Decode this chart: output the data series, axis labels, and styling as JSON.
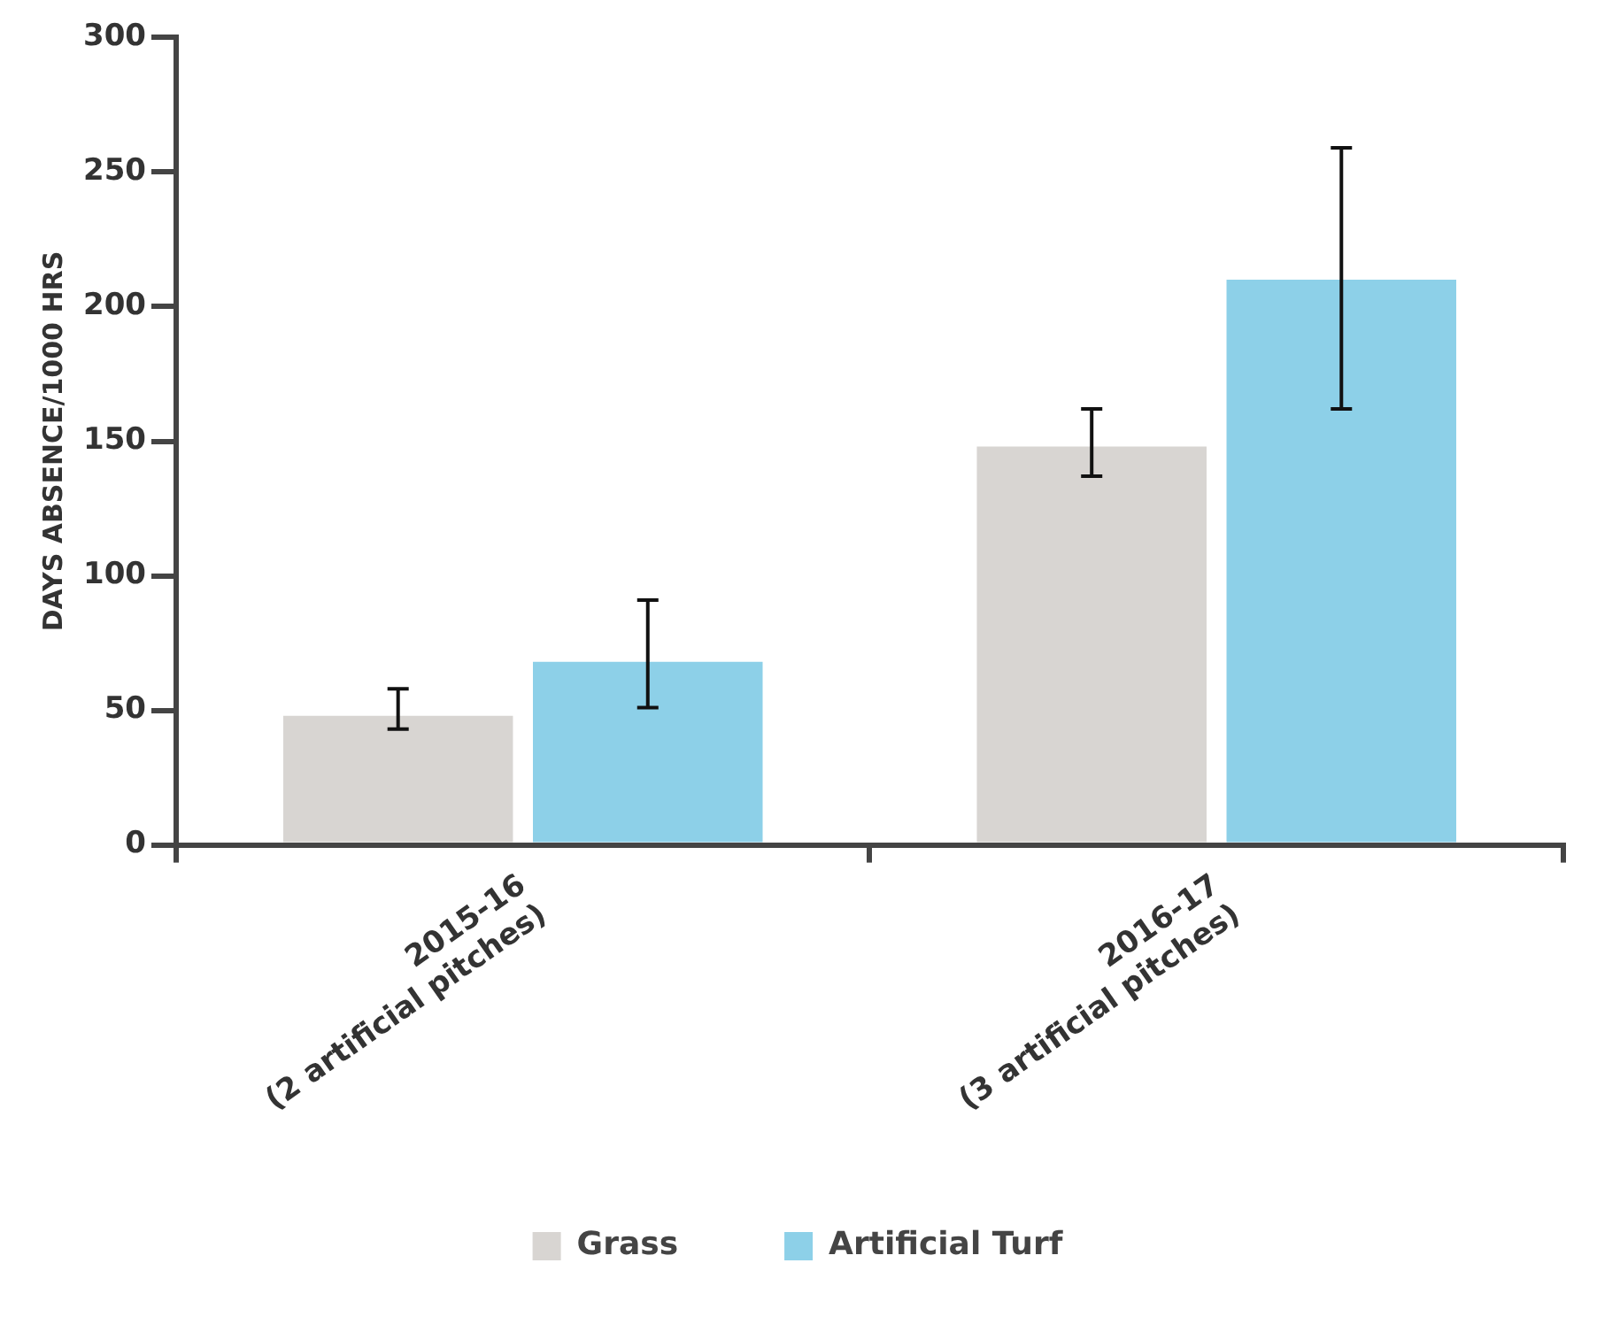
{
  "chart_data": {
    "type": "bar",
    "ylabel": "DAYS ABSENCE/1000 HRS",
    "categories": [
      "2015-16\n(2 artificial pitches)",
      "2016-17\n(3 artificial pitches)"
    ],
    "series": [
      {
        "name": "Grass",
        "color": "#d8d5d2",
        "values": [
          48,
          148
        ],
        "errors": [
          [
            43,
            58
          ],
          [
            137,
            162
          ]
        ]
      },
      {
        "name": "Artificial Turf",
        "color": "#8dd0e8",
        "values": [
          68,
          210
        ],
        "errors": [
          [
            51,
            91
          ],
          [
            162,
            259
          ]
        ]
      }
    ],
    "ylim": [
      0,
      300
    ],
    "yticks": [
      0,
      50,
      100,
      150,
      200,
      250,
      300
    ],
    "grid": false,
    "legend": "bottom"
  }
}
